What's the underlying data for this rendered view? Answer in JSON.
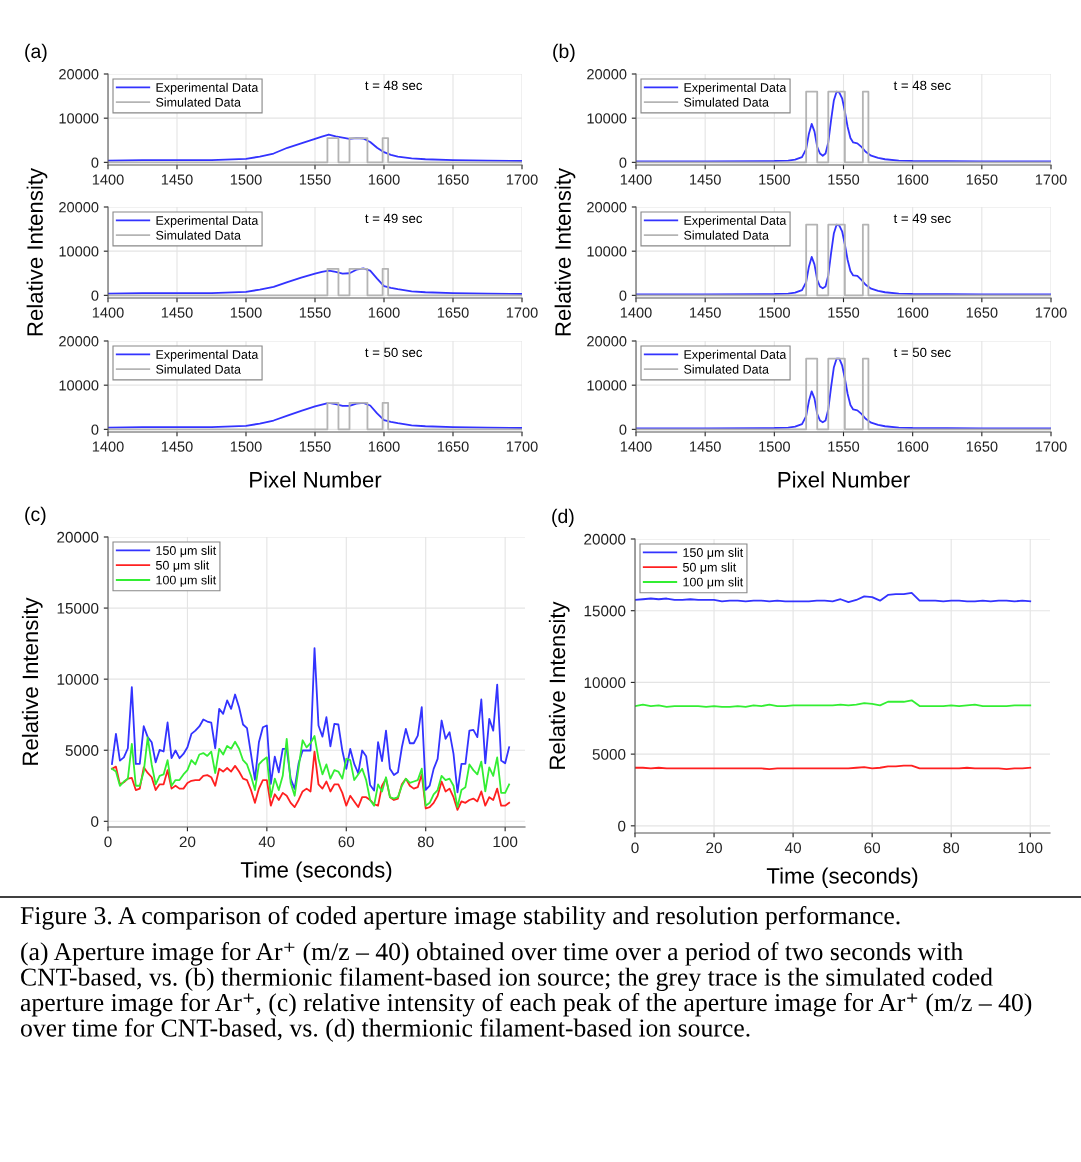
{
  "chart_data": [
    {
      "type": "line",
      "title": "(a)",
      "annotations": [
        "t = 48 sec"
      ],
      "xlim": [
        1400,
        1700
      ],
      "ylim": [
        -600,
        20000
      ],
      "xticks": [
        1400,
        1450,
        1500,
        1550,
        1600,
        1650,
        1700
      ],
      "yticks": [
        0,
        10000,
        20000
      ],
      "grid": true,
      "legend": "top left",
      "series": [
        {
          "name": "Experimental Data",
          "color": "#3333ff",
          "x": [
            1400,
            1425,
            1450,
            1475,
            1500,
            1510,
            1520,
            1530,
            1540,
            1550,
            1555,
            1560,
            1565,
            1570,
            1575,
            1580,
            1585,
            1590,
            1595,
            1600,
            1605,
            1610,
            1620,
            1630,
            1650,
            1675,
            1700
          ],
          "values": [
            400,
            500,
            500,
            500,
            800,
            1300,
            2000,
            3300,
            4300,
            5300,
            5800,
            6300,
            5900,
            5600,
            5300,
            5500,
            5400,
            4600,
            3300,
            2300,
            1700,
            1300,
            900,
            700,
            500,
            400,
            300
          ]
        },
        {
          "name": "Simulated Data",
          "color": "#b4b4b4",
          "x": [
            1400,
            1559,
            1559,
            1567,
            1567,
            1575,
            1575,
            1588,
            1588,
            1599,
            1599,
            1603,
            1603,
            1700
          ],
          "values": [
            0,
            0,
            5500,
            5500,
            0,
            0,
            5500,
            5500,
            0,
            0,
            5500,
            5500,
            0,
            0
          ]
        }
      ]
    },
    {
      "type": "line",
      "ylabel": "Relative Intensity",
      "annotations": [
        "t = 49 sec"
      ],
      "xlim": [
        1400,
        1700
      ],
      "ylim": [
        -600,
        20000
      ],
      "xticks": [
        1400,
        1450,
        1500,
        1550,
        1600,
        1650,
        1700
      ],
      "yticks": [
        0,
        10000,
        20000
      ],
      "grid": true,
      "legend": "top left",
      "series": [
        {
          "name": "Experimental Data",
          "color": "#3333ff",
          "x": [
            1400,
            1425,
            1450,
            1475,
            1500,
            1510,
            1520,
            1530,
            1540,
            1550,
            1555,
            1560,
            1565,
            1570,
            1575,
            1580,
            1585,
            1590,
            1595,
            1600,
            1605,
            1610,
            1620,
            1630,
            1650,
            1675,
            1700
          ],
          "values": [
            400,
            500,
            500,
            500,
            800,
            1300,
            1900,
            3000,
            4000,
            4900,
            5300,
            5600,
            5300,
            4900,
            5000,
            5800,
            6100,
            5600,
            3800,
            2100,
            1700,
            1400,
            900,
            700,
            500,
            400,
            300
          ]
        },
        {
          "name": "Simulated Data",
          "color": "#b4b4b4",
          "x": [
            1400,
            1559,
            1559,
            1567,
            1567,
            1575,
            1575,
            1588,
            1588,
            1599,
            1599,
            1603,
            1603,
            1700
          ],
          "values": [
            0,
            0,
            6000,
            6000,
            0,
            0,
            6000,
            6000,
            0,
            0,
            6000,
            6000,
            0,
            0
          ]
        }
      ]
    },
    {
      "type": "line",
      "xlabel": "Pixel Number",
      "annotations": [
        "t = 50 sec"
      ],
      "xlim": [
        1400,
        1700
      ],
      "ylim": [
        -600,
        20000
      ],
      "xticks": [
        1400,
        1450,
        1500,
        1550,
        1600,
        1650,
        1700
      ],
      "yticks": [
        0,
        10000,
        20000
      ],
      "grid": true,
      "legend": "top left",
      "series": [
        {
          "name": "Experimental Data",
          "color": "#3333ff",
          "x": [
            1400,
            1425,
            1450,
            1475,
            1500,
            1510,
            1520,
            1530,
            1540,
            1550,
            1555,
            1560,
            1565,
            1570,
            1575,
            1580,
            1585,
            1590,
            1595,
            1600,
            1605,
            1610,
            1620,
            1630,
            1650,
            1675,
            1700
          ],
          "values": [
            400,
            500,
            500,
            500,
            800,
            1300,
            2000,
            3100,
            4200,
            5200,
            5600,
            6000,
            5700,
            5300,
            5300,
            5800,
            6000,
            5400,
            3600,
            2100,
            1700,
            1400,
            900,
            700,
            500,
            400,
            300
          ]
        },
        {
          "name": "Simulated Data",
          "color": "#b4b4b4",
          "x": [
            1400,
            1559,
            1559,
            1567,
            1567,
            1575,
            1575,
            1588,
            1588,
            1599,
            1599,
            1603,
            1603,
            1700
          ],
          "values": [
            0,
            0,
            6000,
            6000,
            0,
            0,
            6000,
            6000,
            0,
            0,
            6000,
            6000,
            0,
            0
          ]
        }
      ]
    },
    {
      "type": "line",
      "title": "(b)",
      "annotations": [
        "t = 48 sec"
      ],
      "xlim": [
        1400,
        1700
      ],
      "ylim": [
        -600,
        20000
      ],
      "xticks": [
        1400,
        1450,
        1500,
        1550,
        1600,
        1650,
        1700
      ],
      "yticks": [
        0,
        10000,
        20000
      ],
      "grid": true,
      "legend": "top left",
      "series": [
        {
          "name": "Experimental Data",
          "color": "#3333ff",
          "x": [
            1400,
            1450,
            1500,
            1510,
            1515,
            1520,
            1523,
            1525,
            1527,
            1529,
            1531,
            1533,
            1535,
            1537,
            1539,
            1541,
            1543,
            1545,
            1547,
            1549,
            1551,
            1553,
            1555,
            1557,
            1560,
            1563,
            1566,
            1570,
            1575,
            1580,
            1590,
            1600,
            1650,
            1700
          ],
          "values": [
            200,
            200,
            300,
            400,
            600,
            1200,
            3000,
            6500,
            8700,
            7000,
            3500,
            2000,
            1500,
            2000,
            4500,
            9500,
            14000,
            16000,
            15800,
            14500,
            11500,
            8000,
            5500,
            4500,
            4300,
            3500,
            2400,
            1500,
            1000,
            700,
            400,
            300,
            200,
            200
          ]
        },
        {
          "name": "Simulated Data",
          "color": "#b4b4b4",
          "x": [
            1400,
            1523,
            1523,
            1531,
            1531,
            1539,
            1539,
            1551,
            1551,
            1564,
            1564,
            1568,
            1568,
            1700
          ],
          "values": [
            0,
            0,
            16000,
            16000,
            0,
            0,
            16000,
            16000,
            0,
            0,
            16000,
            16000,
            0,
            0
          ]
        }
      ]
    },
    {
      "type": "line",
      "ylabel": "Relative Intensity",
      "annotations": [
        "t = 49 sec"
      ],
      "xlim": [
        1400,
        1700
      ],
      "ylim": [
        -600,
        20000
      ],
      "xticks": [
        1400,
        1450,
        1500,
        1550,
        1600,
        1650,
        1700
      ],
      "yticks": [
        0,
        10000,
        20000
      ],
      "grid": true,
      "legend": "top left",
      "series": [
        {
          "name": "Experimental Data",
          "color": "#3333ff",
          "x": [
            1400,
            1450,
            1500,
            1510,
            1515,
            1520,
            1523,
            1525,
            1527,
            1529,
            1531,
            1533,
            1535,
            1537,
            1539,
            1541,
            1543,
            1545,
            1547,
            1549,
            1551,
            1553,
            1555,
            1557,
            1560,
            1563,
            1566,
            1570,
            1575,
            1580,
            1590,
            1600,
            1650,
            1700
          ],
          "values": [
            200,
            200,
            300,
            400,
            600,
            1200,
            3000,
            6500,
            8700,
            7000,
            3500,
            2000,
            1600,
            2000,
            4500,
            9500,
            14000,
            16000,
            15800,
            14500,
            11500,
            8000,
            5500,
            4500,
            4400,
            3500,
            2400,
            1500,
            1000,
            700,
            400,
            300,
            200,
            200
          ]
        },
        {
          "name": "Simulated Data",
          "color": "#b4b4b4",
          "x": [
            1400,
            1523,
            1523,
            1531,
            1531,
            1539,
            1539,
            1551,
            1551,
            1564,
            1564,
            1568,
            1568,
            1700
          ],
          "values": [
            0,
            0,
            16000,
            16000,
            0,
            0,
            16000,
            16000,
            0,
            0,
            16000,
            16000,
            0,
            0
          ]
        }
      ]
    },
    {
      "type": "line",
      "xlabel": "Pixel Number",
      "annotations": [
        "t = 50 sec"
      ],
      "xlim": [
        1400,
        1700
      ],
      "ylim": [
        -600,
        20000
      ],
      "xticks": [
        1400,
        1450,
        1500,
        1550,
        1600,
        1650,
        1700
      ],
      "yticks": [
        0,
        10000,
        20000
      ],
      "grid": true,
      "legend": "top left",
      "series": [
        {
          "name": "Experimental Data",
          "color": "#3333ff",
          "x": [
            1400,
            1450,
            1500,
            1510,
            1515,
            1520,
            1523,
            1525,
            1527,
            1529,
            1531,
            1533,
            1535,
            1537,
            1539,
            1541,
            1543,
            1545,
            1547,
            1549,
            1551,
            1553,
            1555,
            1557,
            1560,
            1563,
            1566,
            1570,
            1575,
            1580,
            1590,
            1600,
            1650,
            1700
          ],
          "values": [
            200,
            200,
            300,
            400,
            600,
            1200,
            3000,
            6400,
            8600,
            7000,
            3500,
            2000,
            1600,
            2000,
            4500,
            9500,
            14000,
            16000,
            16000,
            14500,
            11500,
            8000,
            5500,
            4500,
            4300,
            3500,
            2400,
            1500,
            1000,
            700,
            400,
            300,
            200,
            200
          ]
        },
        {
          "name": "Simulated Data",
          "color": "#b4b4b4",
          "x": [
            1400,
            1523,
            1523,
            1531,
            1531,
            1539,
            1539,
            1551,
            1551,
            1564,
            1564,
            1568,
            1568,
            1700
          ],
          "values": [
            0,
            0,
            16000,
            16000,
            0,
            0,
            16000,
            16000,
            0,
            0,
            16000,
            16000,
            0,
            0
          ]
        }
      ]
    },
    {
      "type": "line",
      "title": "(c)",
      "xlabel": "Time (seconds)",
      "ylabel": "Relative Intensity",
      "xlim": [
        0,
        105
      ],
      "ylim": [
        -400,
        20000
      ],
      "xticks": [
        0,
        20,
        40,
        60,
        80,
        100
      ],
      "yticks": [
        0,
        5000,
        10000,
        15000,
        20000
      ],
      "grid": true,
      "legend": "top left",
      "x": [
        1,
        2,
        3,
        4,
        5,
        6,
        7,
        8,
        9,
        10,
        11,
        12,
        13,
        14,
        15,
        16,
        17,
        18,
        19,
        20,
        21,
        22,
        23,
        24,
        25,
        26,
        27,
        28,
        29,
        30,
        31,
        32,
        33,
        34,
        35,
        36,
        37,
        38,
        39,
        40,
        41,
        42,
        43,
        44,
        45,
        46,
        47,
        48,
        49,
        50,
        51,
        52,
        53,
        54,
        55,
        56,
        57,
        58,
        59,
        60,
        61,
        62,
        63,
        64,
        65,
        66,
        67,
        68,
        69,
        70,
        71,
        72,
        73,
        74,
        75,
        76,
        77,
        78,
        79,
        80,
        81,
        82,
        83,
        84,
        85,
        86,
        87,
        88,
        89,
        90,
        91,
        92,
        93,
        94,
        95,
        96,
        97,
        98,
        99,
        100,
        101
      ],
      "series": [
        {
          "name": "150 μm slit",
          "color": "#3333ff",
          "values": [
            4040,
            6150,
            4270,
            4500,
            5140,
            9440,
            4040,
            4040,
            6690,
            5920,
            5560,
            4150,
            5020,
            4910,
            6950,
            4440,
            4980,
            4440,
            4740,
            5210,
            6150,
            6380,
            6670,
            7160,
            7020,
            6950,
            5140,
            7910,
            7560,
            8500,
            7910,
            8920,
            8030,
            6810,
            6550,
            4740,
            2910,
            5560,
            6620,
            6740,
            2630,
            4550,
            3450,
            5090,
            5090,
            2980,
            2280,
            4080,
            4980,
            4980,
            4980,
            12180,
            6740,
            5960,
            7320,
            5280,
            6850,
            6810,
            4980,
            3690,
            5090,
            4040,
            3380,
            4980,
            4580,
            2560,
            2160,
            5560,
            4230,
            6380,
            3690,
            3260,
            3450,
            5210,
            6500,
            5490,
            5490,
            6030,
            8030,
            2210,
            2510,
            3690,
            4390,
            7090,
            5800,
            6270,
            4740,
            2040,
            4040,
            4040,
            6380,
            6430,
            5920,
            8570,
            4080,
            7210,
            6380,
            9620,
            4270,
            4080,
            5210
          ]
        },
        {
          "name": "50 μm slit",
          "color": "#ff2020",
          "values": [
            3700,
            3850,
            2600,
            2750,
            3000,
            3050,
            2200,
            2300,
            3800,
            3400,
            3100,
            2200,
            2600,
            2600,
            3600,
            2300,
            2500,
            2300,
            2300,
            2700,
            2850,
            2900,
            2900,
            3200,
            3250,
            3100,
            2500,
            3700,
            3500,
            3750,
            3500,
            3900,
            3500,
            3000,
            2900,
            2200,
            1300,
            2300,
            2900,
            2900,
            1100,
            1900,
            1500,
            2000,
            1800,
            1300,
            1000,
            1500,
            2100,
            2300,
            2100,
            4900,
            2600,
            2300,
            2800,
            2100,
            2600,
            2600,
            2000,
            1100,
            1800,
            1400,
            1000,
            1700,
            1700,
            1500,
            1200,
            1100,
            2500,
            3000,
            1700,
            1500,
            1600,
            2600,
            3000,
            2500,
            2300,
            2400,
            3300,
            900,
            1000,
            1300,
            1800,
            2800,
            2100,
            2300,
            1700,
            800,
            1400,
            1300,
            1500,
            1600,
            1400,
            2100,
            1100,
            1700,
            1500,
            2300,
            1100,
            1100,
            1300
          ]
        },
        {
          "name": "100 μm slit",
          "color": "#33ee33",
          "values": [
            3700,
            3500,
            2500,
            2800,
            3000,
            5450,
            2500,
            2500,
            3500,
            5900,
            4000,
            2600,
            3200,
            3300,
            4300,
            2500,
            2900,
            2900,
            3300,
            3600,
            4300,
            4000,
            4700,
            4800,
            4600,
            4900,
            3400,
            5100,
            4700,
            5300,
            5100,
            5600,
            5100,
            4300,
            4000,
            3200,
            2200,
            4000,
            4300,
            4500,
            1700,
            3000,
            2200,
            3200,
            5800,
            2700,
            1800,
            3800,
            5700,
            5200,
            5500,
            6000,
            4400,
            3300,
            4000,
            3000,
            3600,
            3500,
            3000,
            4400,
            4300,
            2900,
            3300,
            3700,
            2900,
            1500,
            1100,
            2600,
            2100,
            3100,
            1700,
            1600,
            1700,
            2500,
            3000,
            2700,
            2800,
            2900,
            3700,
            1100,
            1300,
            1900,
            2200,
            3200,
            2900,
            3000,
            2500,
            1000,
            2200,
            2400,
            4000,
            3600,
            3300,
            4200,
            2100,
            3800,
            3200,
            4500,
            2000,
            2000,
            2600
          ]
        }
      ]
    },
    {
      "type": "line",
      "title": "(d)",
      "xlabel": "Time (seconds)",
      "ylabel": "Relative Intensity",
      "xlim": [
        0,
        105
      ],
      "ylim": [
        -500,
        20000
      ],
      "xticks": [
        0,
        20,
        40,
        60,
        80,
        100
      ],
      "yticks": [
        0,
        5000,
        10000,
        15000,
        20000
      ],
      "grid": true,
      "legend": "top left",
      "annotations": [
        "Figure 3. A comparison of coded aperture image stability and resolution performance.",
        "(a) Aperture image for Ar⁺ (m/z – 40) obtained over time over a period of two seconds with CNT-based, vs. (b) thermionic filament-based ion source; the grey trace is the simulated coded aperture image for Ar⁺, (c) relative intensity of each peak of the aperture image for Ar⁺ (m/z – 40) over time for CNT-based, vs. (d) thermionic filament-based ion source."
      ],
      "x": [
        0,
        2,
        4,
        6,
        8,
        10,
        12,
        14,
        16,
        18,
        20,
        22,
        24,
        26,
        28,
        30,
        32,
        34,
        36,
        38,
        40,
        42,
        44,
        46,
        48,
        50,
        52,
        54,
        56,
        58,
        60,
        62,
        64,
        66,
        68,
        70,
        72,
        74,
        76,
        78,
        80,
        82,
        84,
        86,
        88,
        90,
        92,
        94,
        96,
        98,
        100
      ],
      "series": [
        {
          "name": "150 μm slit",
          "color": "#3333ff",
          "values": [
            15750,
            15800,
            15850,
            15800,
            15850,
            15750,
            15750,
            15800,
            15750,
            15750,
            15750,
            15650,
            15700,
            15700,
            15650,
            15700,
            15700,
            15650,
            15700,
            15650,
            15650,
            15650,
            15650,
            15700,
            15700,
            15650,
            15800,
            15600,
            15750,
            16000,
            15950,
            15700,
            16100,
            16150,
            16150,
            16250,
            15700,
            15700,
            15700,
            15650,
            15700,
            15700,
            15650,
            15650,
            15700,
            15650,
            15700,
            15700,
            15650,
            15700,
            15650
          ]
        },
        {
          "name": "50 μm slit",
          "color": "#ff2020",
          "values": [
            4050,
            4050,
            4000,
            4050,
            4000,
            4000,
            4000,
            4000,
            4000,
            4000,
            4000,
            4000,
            4000,
            4000,
            4000,
            4000,
            4000,
            3950,
            4000,
            4000,
            4000,
            4000,
            4000,
            4000,
            4000,
            4000,
            4000,
            4000,
            4050,
            4100,
            4000,
            4050,
            4150,
            4150,
            4200,
            4200,
            4000,
            4000,
            4000,
            4000,
            4000,
            4000,
            4050,
            4000,
            4000,
            4000,
            4000,
            3950,
            4000,
            4000,
            4050
          ]
        },
        {
          "name": "100 μm slit",
          "color": "#33ee33",
          "values": [
            8350,
            8450,
            8350,
            8400,
            8300,
            8350,
            8350,
            8350,
            8350,
            8300,
            8350,
            8300,
            8300,
            8350,
            8300,
            8400,
            8350,
            8450,
            8350,
            8350,
            8400,
            8400,
            8400,
            8400,
            8400,
            8400,
            8450,
            8400,
            8450,
            8550,
            8500,
            8400,
            8650,
            8650,
            8650,
            8750,
            8350,
            8350,
            8350,
            8350,
            8400,
            8350,
            8400,
            8450,
            8350,
            8350,
            8350,
            8350,
            8400,
            8400,
            8400
          ]
        }
      ]
    }
  ]
}
